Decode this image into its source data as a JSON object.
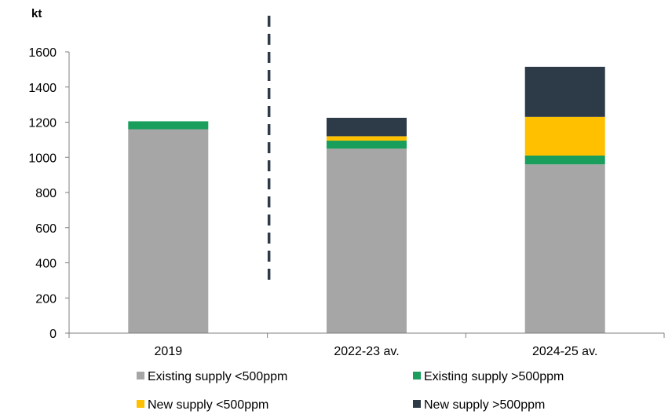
{
  "chart_data": {
    "type": "bar",
    "stacked": true,
    "unit_label": "kt",
    "categories": [
      "2019",
      "2022-23 av.",
      "2024-25 av."
    ],
    "ylim": [
      0,
      1600
    ],
    "yticks": [
      0,
      200,
      400,
      600,
      800,
      1000,
      1200,
      1400,
      1600
    ],
    "grid": false,
    "legend_position": "bottom",
    "divider_after_category": 0,
    "series": [
      {
        "name": "Existing supply <500ppm",
        "color": "#a6a6a6",
        "values": [
          1160,
          1050,
          960
        ]
      },
      {
        "name": "Existing supply >500ppm",
        "color": "#1a9e5c",
        "values": [
          45,
          45,
          50
        ]
      },
      {
        "name": "New supply <500ppm",
        "color": "#ffc000",
        "values": [
          0,
          25,
          220
        ]
      },
      {
        "name": "New supply >500ppm",
        "color": "#2d3a48",
        "values": [
          0,
          105,
          285
        ]
      }
    ]
  }
}
